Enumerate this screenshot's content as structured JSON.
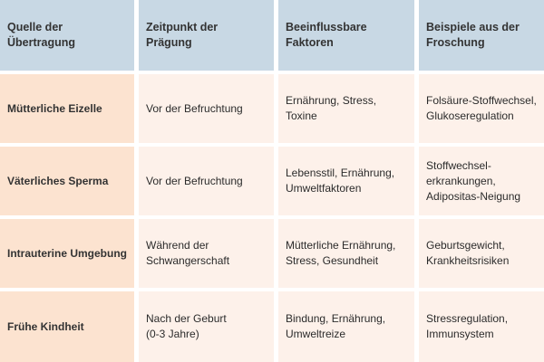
{
  "table": {
    "header": [
      "Quelle der Übertragung",
      "Zeitpunkt der Prägung",
      "Beeinflussbare Faktoren",
      "Beispiele aus der\nFroschung"
    ],
    "rows": [
      [
        "Mütterliche Eizelle",
        "Vor der Befruchtung",
        "Ernährung, Stress,\nToxine",
        "Folsäure-Stoffwechsel,\nGlukoseregulation"
      ],
      [
        "Väterliches Sperma",
        "Vor der Befruchtung",
        "Lebensstil, Ernährung,\nUmweltfaktoren",
        "Stoffwechsel-\nerkrankungen,\nAdipositas-Neigung"
      ],
      [
        "Intrauterine Umgebung",
        "Während der\nSchwangerschaft",
        "Mütterliche Ernährung,\nStress, Gesundheit",
        "Geburtsgewicht,\nKrankheitsrisiken"
      ],
      [
        "Frühe Kindheit",
        "Nach der Geburt\n(0-3 Jahre)",
        "Bindung, Ernährung,\nUmweltreize",
        "Stressregulation,\nImmunsystem"
      ]
    ]
  }
}
